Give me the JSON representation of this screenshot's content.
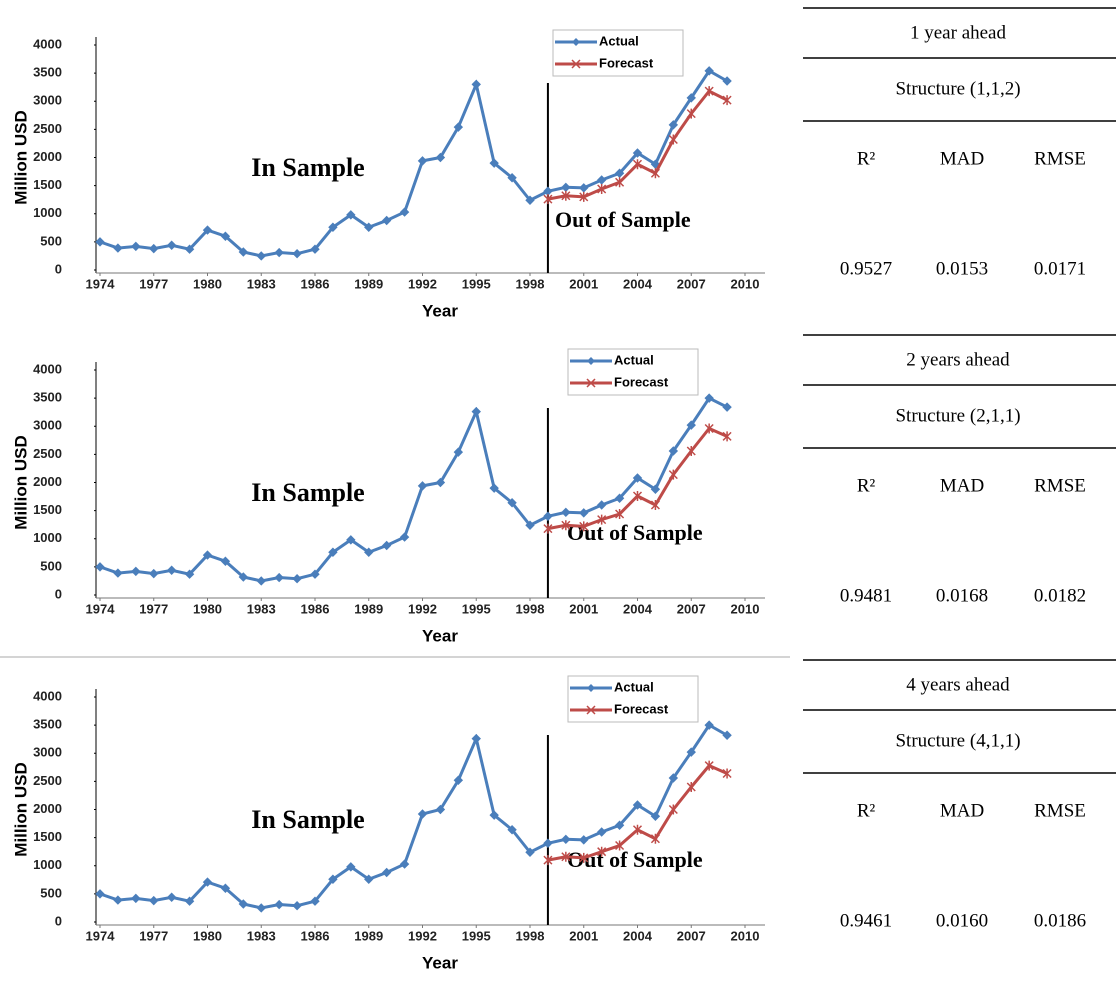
{
  "chart_data": [
    {
      "type": "line",
      "x_label": "Year",
      "y_label": "Million USD",
      "annotations": [
        "In Sample",
        "Out of Sample"
      ],
      "sample_split": 1999,
      "x": [
        1974,
        1975,
        1976,
        1977,
        1978,
        1979,
        1980,
        1981,
        1982,
        1983,
        1984,
        1985,
        1986,
        1987,
        1988,
        1989,
        1990,
        1991,
        1992,
        1993,
        1994,
        1995,
        1996,
        1997,
        1998,
        1999,
        2000,
        2001,
        2002,
        2003,
        2004,
        2005,
        2006,
        2007,
        2008,
        2009
      ],
      "xlim": [
        1974,
        2010
      ],
      "xticks": [
        1974,
        1977,
        1980,
        1983,
        1986,
        1989,
        1992,
        1995,
        1998,
        2001,
        2004,
        2007,
        2010
      ],
      "ylim": [
        0,
        4000
      ],
      "yticks": [
        0,
        500,
        1000,
        1500,
        2000,
        2500,
        3000,
        3500,
        4000
      ],
      "legend": "upper right",
      "series": [
        {
          "name": "Actual",
          "color": "#4a7ebb",
          "marker": "diamond",
          "values": [
            500,
            390,
            420,
            380,
            440,
            370,
            710,
            600,
            320,
            250,
            310,
            290,
            370,
            760,
            980,
            760,
            880,
            1030,
            1940,
            2000,
            2540,
            3300,
            1900,
            1640,
            1240,
            1400,
            1470,
            1460,
            1600,
            1720,
            2080,
            1880,
            2580,
            3060,
            3540,
            3360
          ]
        },
        {
          "name": "Forecast",
          "color": "#be4b48",
          "marker": "x",
          "values": [
            null,
            null,
            null,
            null,
            null,
            null,
            null,
            null,
            null,
            null,
            null,
            null,
            null,
            null,
            null,
            null,
            null,
            null,
            null,
            null,
            null,
            null,
            null,
            null,
            null,
            1260,
            1320,
            1300,
            1440,
            1560,
            1880,
            1720,
            2320,
            2780,
            3180,
            3020
          ]
        }
      ]
    },
    {
      "type": "line",
      "x_label": "Year",
      "y_label": "Million USD",
      "annotations": [
        "In Sample",
        "Out of Sample"
      ],
      "sample_split": 1999,
      "x": [
        1974,
        1975,
        1976,
        1977,
        1978,
        1979,
        1980,
        1981,
        1982,
        1983,
        1984,
        1985,
        1986,
        1987,
        1988,
        1989,
        1990,
        1991,
        1992,
        1993,
        1994,
        1995,
        1996,
        1997,
        1998,
        1999,
        2000,
        2001,
        2002,
        2003,
        2004,
        2005,
        2006,
        2007,
        2008,
        2009
      ],
      "xlim": [
        1974,
        2010
      ],
      "xticks": [
        1974,
        1977,
        1980,
        1983,
        1986,
        1989,
        1992,
        1995,
        1998,
        2001,
        2004,
        2007,
        2010
      ],
      "ylim": [
        0,
        4000
      ],
      "yticks": [
        0,
        500,
        1000,
        1500,
        2000,
        2500,
        3000,
        3500,
        4000
      ],
      "legend": "upper right",
      "series": [
        {
          "name": "Actual",
          "color": "#4a7ebb",
          "marker": "diamond",
          "values": [
            500,
            390,
            420,
            380,
            440,
            370,
            710,
            600,
            320,
            250,
            310,
            290,
            370,
            760,
            980,
            760,
            880,
            1030,
            1940,
            2000,
            2540,
            3260,
            1900,
            1640,
            1240,
            1400,
            1470,
            1460,
            1600,
            1720,
            2080,
            1880,
            2560,
            3020,
            3500,
            3340
          ]
        },
        {
          "name": "Forecast",
          "color": "#be4b48",
          "marker": "x",
          "values": [
            null,
            null,
            null,
            null,
            null,
            null,
            null,
            null,
            null,
            null,
            null,
            null,
            null,
            null,
            null,
            null,
            null,
            null,
            null,
            null,
            null,
            null,
            null,
            null,
            null,
            1180,
            1240,
            1220,
            1340,
            1440,
            1760,
            1600,
            2140,
            2560,
            2960,
            2820
          ]
        }
      ]
    },
    {
      "type": "line",
      "x_label": "Year",
      "y_label": "Million USD",
      "annotations": [
        "In Sample",
        "Out of Sample"
      ],
      "sample_split": 1999,
      "x": [
        1974,
        1975,
        1976,
        1977,
        1978,
        1979,
        1980,
        1981,
        1982,
        1983,
        1984,
        1985,
        1986,
        1987,
        1988,
        1989,
        1990,
        1991,
        1992,
        1993,
        1994,
        1995,
        1996,
        1997,
        1998,
        1999,
        2000,
        2001,
        2002,
        2003,
        2004,
        2005,
        2006,
        2007,
        2008,
        2009
      ],
      "xlim": [
        1974,
        2010
      ],
      "xticks": [
        1974,
        1977,
        1980,
        1983,
        1986,
        1989,
        1992,
        1995,
        1998,
        2001,
        2004,
        2007,
        2010
      ],
      "ylim": [
        0,
        4000
      ],
      "yticks": [
        0,
        500,
        1000,
        1500,
        2000,
        2500,
        3000,
        3500,
        4000
      ],
      "legend": "upper right",
      "series": [
        {
          "name": "Actual",
          "color": "#4a7ebb",
          "marker": "diamond",
          "values": [
            500,
            390,
            420,
            380,
            440,
            370,
            710,
            600,
            320,
            250,
            310,
            290,
            370,
            760,
            980,
            760,
            880,
            1030,
            1920,
            2000,
            2520,
            3260,
            1900,
            1640,
            1240,
            1400,
            1470,
            1460,
            1600,
            1720,
            2080,
            1880,
            2560,
            3020,
            3500,
            3320
          ]
        },
        {
          "name": "Forecast",
          "color": "#be4b48",
          "marker": "x",
          "values": [
            null,
            null,
            null,
            null,
            null,
            null,
            null,
            null,
            null,
            null,
            null,
            null,
            null,
            null,
            null,
            null,
            null,
            null,
            null,
            null,
            null,
            null,
            null,
            null,
            null,
            1100,
            1160,
            1140,
            1250,
            1360,
            1640,
            1480,
            2000,
            2400,
            2780,
            2640
          ]
        }
      ]
    }
  ],
  "table": {
    "blocks": [
      {
        "horizon": "1 year ahead",
        "structure": "Structure (1,1,2)",
        "headers": [
          "R²",
          "MAD",
          "RMSE"
        ],
        "values": [
          "0.9527",
          "0.0153",
          "0.0171"
        ]
      },
      {
        "horizon": "2 years ahead",
        "structure": "Structure (2,1,1)",
        "headers": [
          "R²",
          "MAD",
          "RMSE"
        ],
        "values": [
          "0.9481",
          "0.0168",
          "0.0182"
        ]
      },
      {
        "horizon": "4 years ahead",
        "structure": "Structure (4,1,1)",
        "headers": [
          "R²",
          "MAD",
          "RMSE"
        ],
        "values": [
          "0.9461",
          "0.0160",
          "0.0186"
        ]
      }
    ]
  }
}
